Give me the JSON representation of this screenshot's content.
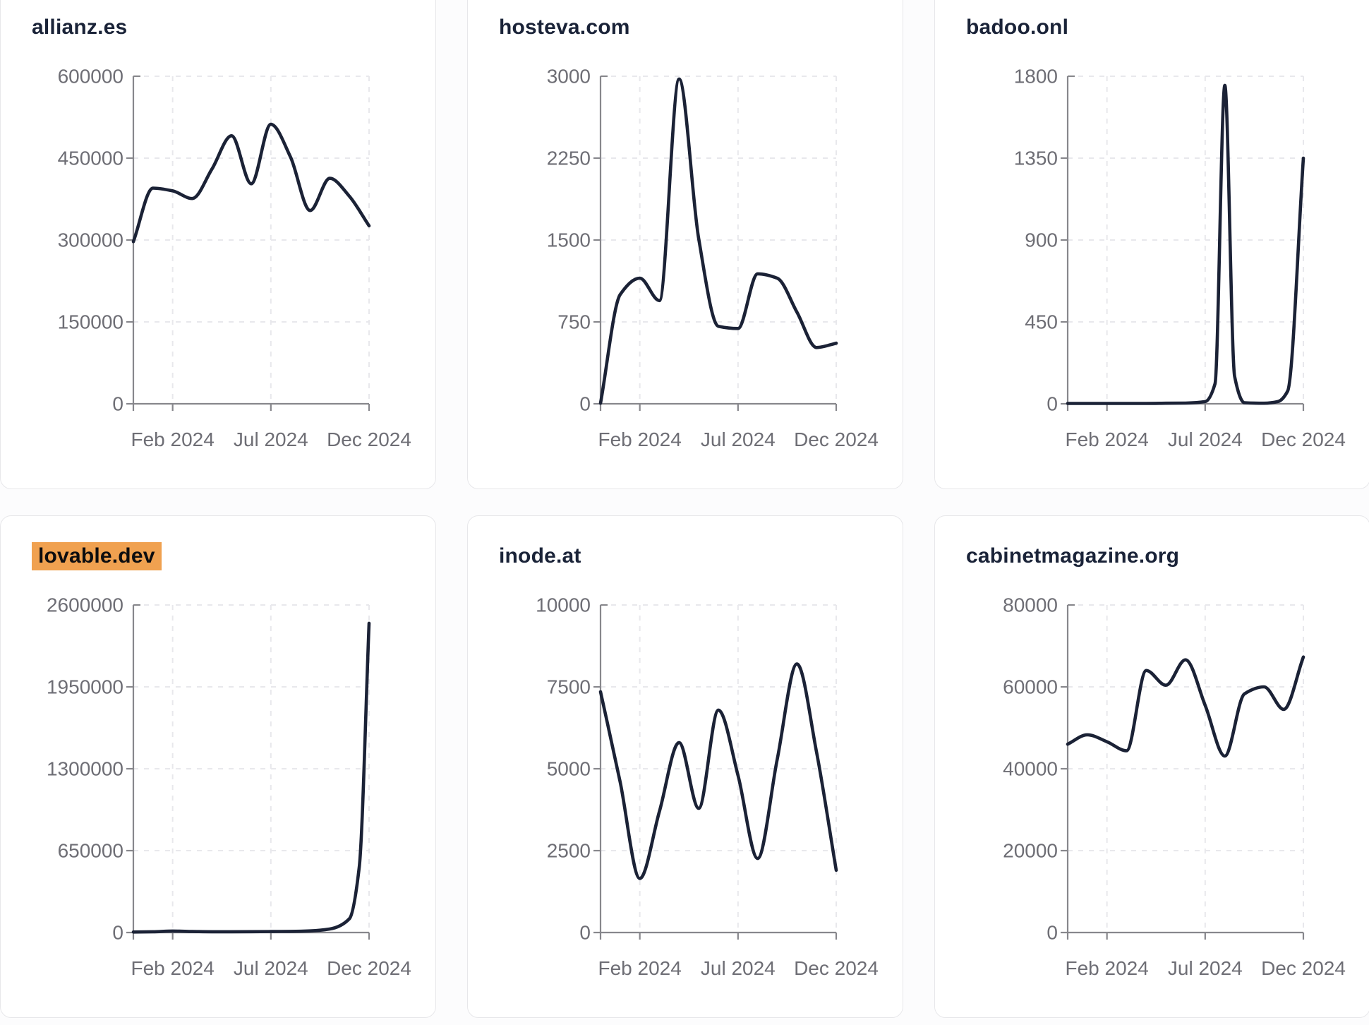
{
  "page": {
    "description": "Dashboard grid of six domain traffic trend mini line charts"
  },
  "colors": {
    "series_line": "#1b2236",
    "title_text": "#1a2338",
    "title_highlight_bg": "#f0a150",
    "title_highlight_text": "#0d0d0f",
    "axis_line": "#87878c",
    "tick_label": "#6e6e75",
    "gridline": "#e8e8ec",
    "card_background": "#ffffff",
    "card_border": "#e7e7ea",
    "page_background": "#fcfcfd"
  },
  "chart_data": [
    {
      "type": "line",
      "title": "allianz.es",
      "title_highlight": false,
      "x_range": [
        "Dec 2023",
        "Dec 2024"
      ],
      "x_ticks": [
        {
          "m": 2,
          "label": "Feb 2024"
        },
        {
          "m": 7,
          "label": "Jul 2024"
        },
        {
          "m": 12,
          "label": "Dec 2024"
        }
      ],
      "y_max": 600000,
      "y_ticks": [
        {
          "v": 0,
          "label": "0"
        },
        {
          "v": 150000,
          "label": "150000"
        },
        {
          "v": 300000,
          "label": "300000"
        },
        {
          "v": 450000,
          "label": "450000"
        },
        {
          "v": 600000,
          "label": "600000"
        }
      ],
      "x": [
        0,
        1,
        2,
        3,
        4,
        5,
        6,
        7,
        8,
        9,
        10,
        11,
        12
      ],
      "y": [
        297000,
        395000,
        390000,
        376000,
        430000,
        491000,
        403000,
        512000,
        452000,
        354000,
        413000,
        380000,
        326000
      ]
    },
    {
      "type": "line",
      "title": "hosteva.com",
      "title_highlight": false,
      "x_range": [
        "Dec 2023",
        "Dec 2024"
      ],
      "x_ticks": [
        {
          "m": 2,
          "label": "Feb 2024"
        },
        {
          "m": 7,
          "label": "Jul 2024"
        },
        {
          "m": 12,
          "label": "Dec 2024"
        }
      ],
      "y_max": 3000,
      "y_ticks": [
        {
          "v": 0,
          "label": "0"
        },
        {
          "v": 750,
          "label": "750"
        },
        {
          "v": 1500,
          "label": "1500"
        },
        {
          "v": 2250,
          "label": "2250"
        },
        {
          "v": 3000,
          "label": "3000"
        }
      ],
      "x": [
        0,
        1,
        2,
        3,
        4,
        5,
        6,
        7,
        8,
        9,
        10,
        11,
        12
      ],
      "y": [
        5,
        1000,
        1150,
        945,
        2975,
        1510,
        710,
        690,
        1190,
        1150,
        840,
        515,
        555
      ]
    },
    {
      "type": "line",
      "title": "badoo.onl",
      "title_highlight": false,
      "x_range": [
        "Dec 2023",
        "Dec 2024"
      ],
      "x_ticks": [
        {
          "m": 2,
          "label": "Feb 2024"
        },
        {
          "m": 7,
          "label": "Jul 2024"
        },
        {
          "m": 12,
          "label": "Dec 2024"
        }
      ],
      "y_max": 1800,
      "y_ticks": [
        {
          "v": 0,
          "label": "0"
        },
        {
          "v": 450,
          "label": "450"
        },
        {
          "v": 900,
          "label": "900"
        },
        {
          "v": 1350,
          "label": "1350"
        },
        {
          "v": 1800,
          "label": "1800"
        }
      ],
      "x": [
        0,
        1,
        2,
        3,
        4,
        5,
        6,
        7,
        7.5,
        8,
        8.5,
        9,
        10,
        10.7,
        11.2,
        12
      ],
      "y": [
        2,
        2,
        2,
        2,
        2,
        3,
        4,
        12,
        110,
        1750,
        150,
        6,
        3,
        12,
        70,
        1350
      ]
    },
    {
      "type": "line",
      "title": "lovable.dev",
      "title_highlight": true,
      "x_range": [
        "Dec 2023",
        "Dec 2024"
      ],
      "x_ticks": [
        {
          "m": 2,
          "label": "Feb 2024"
        },
        {
          "m": 7,
          "label": "Jul 2024"
        },
        {
          "m": 12,
          "label": "Dec 2024"
        }
      ],
      "y_max": 2600000,
      "y_ticks": [
        {
          "v": 0,
          "label": "0"
        },
        {
          "v": 650000,
          "label": "650000"
        },
        {
          "v": 1300000,
          "label": "1300000"
        },
        {
          "v": 1950000,
          "label": "1950000"
        },
        {
          "v": 2600000,
          "label": "2600000"
        }
      ],
      "x": [
        0,
        1,
        2,
        3,
        4,
        5,
        6,
        7,
        8,
        9,
        10,
        11,
        11.5,
        12
      ],
      "y": [
        4000,
        6000,
        12000,
        8000,
        6000,
        6000,
        7000,
        8000,
        9000,
        13000,
        28000,
        110000,
        520000,
        2455000
      ]
    },
    {
      "type": "line",
      "title": "inode.at",
      "title_highlight": false,
      "x_range": [
        "Dec 2023",
        "Dec 2024"
      ],
      "x_ticks": [
        {
          "m": 2,
          "label": "Feb 2024"
        },
        {
          "m": 7,
          "label": "Jul 2024"
        },
        {
          "m": 12,
          "label": "Dec 2024"
        }
      ],
      "y_max": 10000,
      "y_ticks": [
        {
          "v": 0,
          "label": "0"
        },
        {
          "v": 2500,
          "label": "2500"
        },
        {
          "v": 5000,
          "label": "5000"
        },
        {
          "v": 7500,
          "label": "7500"
        },
        {
          "v": 10000,
          "label": "10000"
        }
      ],
      "x": [
        0,
        1,
        2,
        3,
        4,
        5,
        6,
        7,
        8,
        9,
        10,
        11,
        12
      ],
      "y": [
        7350,
        4600,
        1650,
        3700,
        5800,
        3790,
        6790,
        4800,
        2260,
        5300,
        8200,
        5500,
        1900
      ]
    },
    {
      "type": "line",
      "title": "cabinetmagazine.org",
      "title_highlight": false,
      "x_range": [
        "Dec 2023",
        "Dec 2024"
      ],
      "x_ticks": [
        {
          "m": 2,
          "label": "Feb 2024"
        },
        {
          "m": 7,
          "label": "Jul 2024"
        },
        {
          "m": 12,
          "label": "Dec 2024"
        }
      ],
      "y_max": 80000,
      "y_ticks": [
        {
          "v": 0,
          "label": "0"
        },
        {
          "v": 20000,
          "label": "20000"
        },
        {
          "v": 40000,
          "label": "40000"
        },
        {
          "v": 60000,
          "label": "60000"
        },
        {
          "v": 80000,
          "label": "80000"
        }
      ],
      "x": [
        0,
        1,
        2,
        3,
        4,
        5,
        6,
        7,
        8,
        9,
        10,
        11,
        12
      ],
      "y": [
        46000,
        48300,
        46600,
        44400,
        64000,
        60400,
        66600,
        55500,
        43100,
        58300,
        60000,
        54500,
        67300
      ]
    }
  ]
}
